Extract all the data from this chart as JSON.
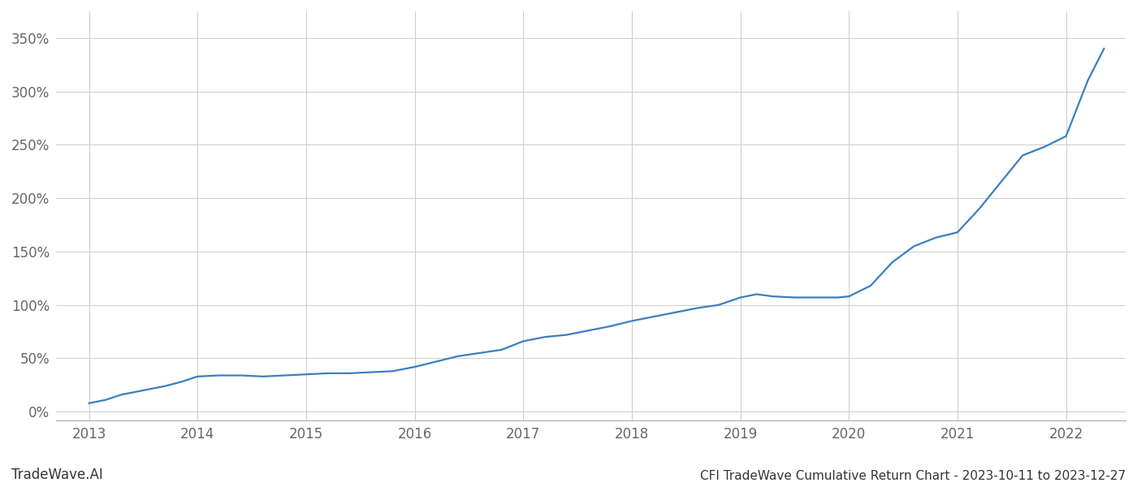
{
  "title": "CFI TradeWave Cumulative Return Chart - 2023-10-11 to 2023-12-27",
  "watermark": "TradeWave.AI",
  "line_color": "#3a7fc1",
  "background_color": "#ffffff",
  "grid_color": "#cccccc",
  "text_color": "#666666",
  "x_years": [
    2013,
    2014,
    2015,
    2016,
    2017,
    2018,
    2019,
    2020,
    2021,
    2022
  ],
  "x_values": [
    2013.0,
    2013.15,
    2013.3,
    2013.5,
    2013.7,
    2013.85,
    2014.0,
    2014.2,
    2014.4,
    2014.6,
    2014.8,
    2015.0,
    2015.2,
    2015.4,
    2015.6,
    2015.8,
    2016.0,
    2016.2,
    2016.4,
    2016.6,
    2016.8,
    2017.0,
    2017.2,
    2017.4,
    2017.6,
    2017.8,
    2018.0,
    2018.2,
    2018.4,
    2018.6,
    2018.8,
    2019.0,
    2019.15,
    2019.3,
    2019.5,
    2019.7,
    2019.9,
    2020.0,
    2020.2,
    2020.4,
    2020.6,
    2020.8,
    2021.0,
    2021.2,
    2021.4,
    2021.6,
    2021.8,
    2022.0,
    2022.2,
    2022.35
  ],
  "y_values": [
    8,
    11,
    16,
    20,
    24,
    28,
    33,
    34,
    34,
    33,
    34,
    35,
    36,
    36,
    37,
    38,
    42,
    47,
    52,
    55,
    58,
    66,
    70,
    72,
    76,
    80,
    85,
    89,
    93,
    97,
    100,
    107,
    110,
    108,
    107,
    107,
    107,
    108,
    118,
    140,
    155,
    163,
    168,
    190,
    215,
    240,
    248,
    258,
    310,
    340
  ],
  "yticks": [
    0,
    50,
    100,
    150,
    200,
    250,
    300,
    350
  ],
  "ylim": [
    -8,
    375
  ],
  "xlim": [
    2012.7,
    2022.55
  ],
  "line_width": 1.6,
  "watermark_fontsize": 12,
  "title_fontsize": 11,
  "tick_fontsize": 12
}
